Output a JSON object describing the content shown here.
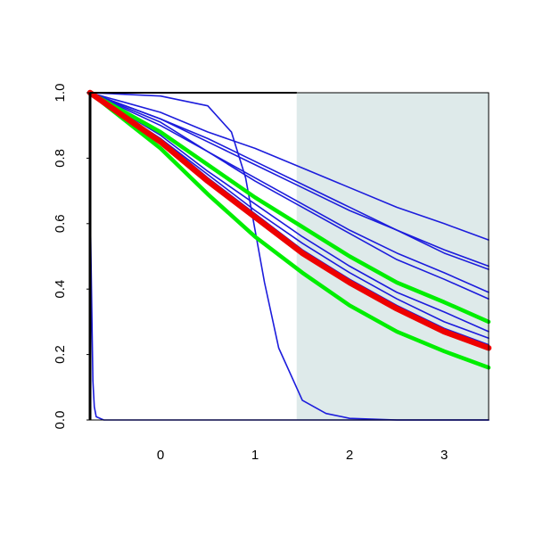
{
  "chart_data": {
    "type": "line",
    "xlim": [
      -0.745,
      3.47
    ],
    "ylim": [
      0,
      1
    ],
    "xticks": [
      0,
      1,
      2,
      3
    ],
    "yticks": [
      {
        "value": 0,
        "label": "0.0"
      },
      0.2,
      0.4,
      0.6,
      0.8,
      {
        "value": 1,
        "label": "1.0"
      }
    ],
    "shade": {
      "xlim": [
        1.44,
        3.47
      ],
      "color": "#deeaea"
    },
    "series": [
      {
        "color": "#1c1cdc",
        "line_width": 1.6,
        "x": [
          -0.745,
          0,
          0.5,
          1,
          1.5,
          2,
          2.5,
          3,
          3.47
        ],
        "values": [
          1,
          0.94,
          0.88,
          0.83,
          0.77,
          0.71,
          0.65,
          0.6,
          0.55
        ]
      },
      {
        "color": "#1c1cdc",
        "line_width": 1.6,
        "x": [
          -0.745,
          0,
          0.5,
          1,
          1.5,
          2,
          2.5,
          3,
          3.47
        ],
        "values": [
          1,
          0.92,
          0.86,
          0.79,
          0.72,
          0.65,
          0.58,
          0.52,
          0.47
        ]
      },
      {
        "color": "#1c1cdc",
        "line_width": 1.6,
        "x": [
          -0.745,
          0,
          0.5,
          1,
          1.5,
          2,
          2.5,
          3,
          3.47
        ],
        "values": [
          1,
          0.92,
          0.85,
          0.78,
          0.71,
          0.64,
          0.58,
          0.51,
          0.46
        ]
      },
      {
        "color": "#1c1cdc",
        "line_width": 1.6,
        "x": [
          -0.745,
          0,
          0.5,
          1,
          1.5,
          2,
          2.5,
          3,
          3.47
        ],
        "values": [
          1,
          0.91,
          0.82,
          0.74,
          0.66,
          0.58,
          0.51,
          0.45,
          0.39
        ]
      },
      {
        "color": "#1c1cdc",
        "line_width": 1.6,
        "x": [
          -0.745,
          0,
          0.5,
          1,
          1.5,
          2,
          2.5,
          3,
          3.47
        ],
        "values": [
          1,
          0.9,
          0.82,
          0.73,
          0.65,
          0.57,
          0.49,
          0.43,
          0.37
        ]
      },
      {
        "color": "#1c1cdc",
        "line_width": 1.6,
        "x": [
          -0.745,
          0,
          0.5,
          1,
          1.5,
          2,
          2.5,
          3,
          3.47
        ],
        "values": [
          1,
          0.87,
          0.76,
          0.66,
          0.56,
          0.47,
          0.39,
          0.33,
          0.27
        ]
      },
      {
        "color": "#1c1cdc",
        "line_width": 1.6,
        "x": [
          -0.745,
          0,
          0.5,
          1,
          1.5,
          2,
          2.5,
          3,
          3.47
        ],
        "values": [
          1,
          0.86,
          0.75,
          0.64,
          0.54,
          0.45,
          0.37,
          0.3,
          0.25
        ]
      },
      {
        "color": "#1c1cdc",
        "line_width": 1.6,
        "x": [
          -0.745,
          0,
          0.5,
          1,
          1.5,
          2,
          2.5,
          3,
          3.47
        ],
        "values": [
          1,
          0.86,
          0.74,
          0.63,
          0.52,
          0.43,
          0.35,
          0.28,
          0.23
        ]
      },
      {
        "color": "#1c1cdc",
        "line_width": 1.6,
        "x": [
          -0.745,
          0,
          0.5,
          0.75,
          0.9,
          1,
          1.1,
          1.25,
          1.5,
          1.75,
          2,
          2.5,
          3.47
        ],
        "values": [
          1,
          0.99,
          0.96,
          0.88,
          0.74,
          0.58,
          0.42,
          0.22,
          0.06,
          0.02,
          0.005,
          0,
          0
        ]
      },
      {
        "color": "#1c1cdc",
        "line_width": 1.6,
        "x": [
          -0.745,
          -0.73,
          -0.715,
          -0.7,
          -0.68,
          -0.6,
          3.47
        ],
        "values": [
          0.69,
          0.4,
          0.12,
          0.04,
          0.01,
          0,
          0
        ]
      },
      {
        "color": "#00ee00",
        "line_width": 4.5,
        "x": [
          -0.745,
          0,
          0.5,
          1,
          1.5,
          2,
          2.5,
          3,
          3.47
        ],
        "values": [
          1,
          0.88,
          0.78,
          0.68,
          0.59,
          0.5,
          0.42,
          0.36,
          0.3
        ]
      },
      {
        "color": "#00ee00",
        "line_width": 4.5,
        "x": [
          -0.745,
          0,
          0.5,
          1,
          1.5,
          2,
          2.5,
          3,
          3.47
        ],
        "values": [
          1,
          0.83,
          0.69,
          0.56,
          0.45,
          0.35,
          0.27,
          0.21,
          0.16
        ]
      },
      {
        "color": "#ee0000",
        "line_width": 6.5,
        "x": [
          -0.745,
          0,
          0.5,
          1,
          1.5,
          2,
          2.5,
          3,
          3.47
        ],
        "values": [
          1,
          0.85,
          0.73,
          0.62,
          0.51,
          0.42,
          0.34,
          0.27,
          0.22
        ]
      }
    ]
  }
}
